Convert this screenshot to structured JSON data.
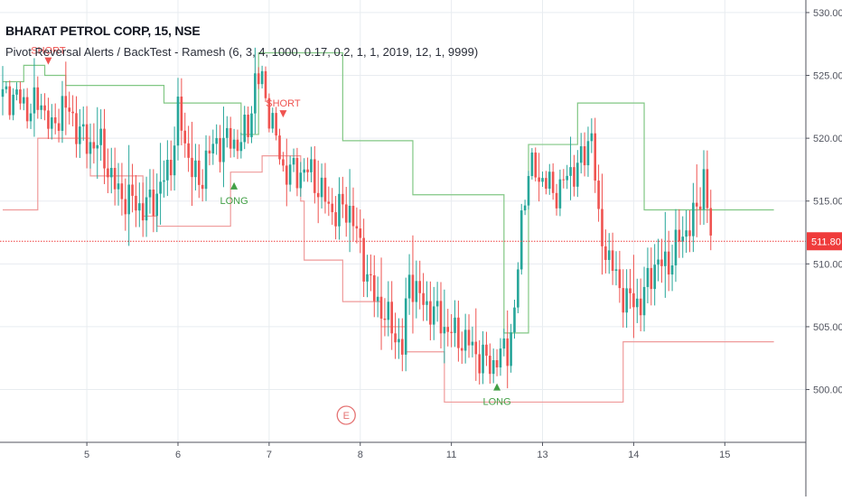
{
  "header": {
    "title": "BHARAT PETROL CORP, 15, NSE",
    "study": "Pivot Reversal Alerts / BackTest - Ramesh (6, 3, 4, 1000, 0.17, 0.2, 1, 1, 2019, 12, 1, 9999)"
  },
  "colors": {
    "up": "#26a69a",
    "down": "#ef5350",
    "upper_line": "#81c784",
    "lower_line": "#ef9a9a",
    "price_line": "#ef3b3b",
    "grid": "#e8ecf0",
    "signal_long": "#43a047",
    "signal_short": "#ef5350"
  },
  "chart_data": {
    "type": "candlestick",
    "ylim": [
      495.8,
      531
    ],
    "y_ticks": [
      "530.00",
      "525.00",
      "520.00",
      "515.00",
      "510.00",
      "505.00",
      "500.00"
    ],
    "x_ticks": [
      {
        "label": "5",
        "bar": 24
      },
      {
        "label": "6",
        "bar": 50
      },
      {
        "label": "7",
        "bar": 76
      },
      {
        "label": "8",
        "bar": 102
      },
      {
        "label": "11",
        "bar": 128
      },
      {
        "label": "13",
        "bar": 154
      },
      {
        "label": "14",
        "bar": 180
      },
      {
        "label": "15",
        "bar": 206
      }
    ],
    "bar_count": 221,
    "current_price": {
      "value": 511.8,
      "label": "511.80"
    },
    "candles_anchors": [
      [
        0,
        523.2
      ],
      [
        7,
        522.6
      ],
      [
        11,
        523.2
      ],
      [
        14,
        520.0
      ],
      [
        17,
        522.5
      ],
      [
        20,
        522.0
      ],
      [
        24,
        519.5
      ],
      [
        28,
        519.0
      ],
      [
        32,
        516.5
      ],
      [
        36,
        515.0
      ],
      [
        40,
        514.0
      ],
      [
        44,
        516.0
      ],
      [
        48,
        518.0
      ],
      [
        50,
        521.5
      ],
      [
        53,
        518.5
      ],
      [
        56,
        516.5
      ],
      [
        58,
        518.8
      ],
      [
        60,
        519.0
      ],
      [
        64,
        519.5
      ],
      [
        67,
        520.0
      ],
      [
        70,
        521.0
      ],
      [
        72,
        524.5
      ],
      [
        74,
        524.0
      ],
      [
        76,
        522.0
      ],
      [
        80,
        518.0
      ],
      [
        84,
        517.0
      ],
      [
        88,
        517.0
      ],
      [
        91,
        516.0
      ],
      [
        95,
        514.0
      ],
      [
        99,
        514.0
      ],
      [
        102,
        511.5
      ],
      [
        106,
        507.5
      ],
      [
        110,
        505.0
      ],
      [
        114,
        503.5
      ],
      [
        116,
        509.5
      ],
      [
        120,
        506.5
      ],
      [
        125,
        505.5
      ],
      [
        128,
        505.0
      ],
      [
        132,
        503.5
      ],
      [
        136,
        502.5
      ],
      [
        140,
        502.5
      ],
      [
        144,
        503.0
      ],
      [
        146,
        505.5
      ],
      [
        148,
        513.5
      ],
      [
        150,
        518.0
      ],
      [
        152,
        517.5
      ],
      [
        155,
        516.5
      ],
      [
        157,
        515.0
      ],
      [
        160,
        516.5
      ],
      [
        163,
        518.0
      ],
      [
        166,
        518.5
      ],
      [
        168,
        520.5
      ],
      [
        170,
        512.5
      ],
      [
        174,
        510.0
      ],
      [
        178,
        507.0
      ],
      [
        182,
        506.5
      ],
      [
        186,
        510.5
      ],
      [
        190,
        510.0
      ],
      [
        194,
        512.0
      ],
      [
        198,
        514.5
      ],
      [
        200,
        517.5
      ],
      [
        202,
        511.8
      ]
    ],
    "upper_line_steps": [
      [
        0,
        524.5
      ],
      [
        6,
        525.8
      ],
      [
        12,
        525.0
      ],
      [
        18,
        524.2
      ],
      [
        46,
        522.8
      ],
      [
        60,
        522.8
      ],
      [
        68,
        520.3
      ],
      [
        73,
        526.8
      ],
      [
        84,
        526.8
      ],
      [
        97,
        519.8
      ],
      [
        116,
        519.8
      ],
      [
        117,
        515.5
      ],
      [
        140,
        515.5
      ],
      [
        143,
        504.5
      ],
      [
        148,
        504.5
      ],
      [
        150,
        519.5
      ],
      [
        160,
        519.5
      ],
      [
        164,
        522.8
      ],
      [
        175,
        522.8
      ],
      [
        183,
        514.3
      ],
      [
        197,
        514.3
      ]
    ],
    "lower_line_steps": [
      [
        0,
        514.3
      ],
      [
        9,
        514.3
      ],
      [
        10,
        520.0
      ],
      [
        22,
        520.0
      ],
      [
        25,
        517.0
      ],
      [
        32,
        517.0
      ],
      [
        40,
        513.8
      ],
      [
        44,
        513.0
      ],
      [
        62,
        513.0
      ],
      [
        65,
        517.3
      ],
      [
        74,
        518.6
      ],
      [
        84,
        518.6
      ],
      [
        85,
        515.0
      ],
      [
        86,
        510.3
      ],
      [
        96,
        510.3
      ],
      [
        97,
        507.0
      ],
      [
        108,
        505.0
      ],
      [
        114,
        505.0
      ],
      [
        115,
        503.0
      ],
      [
        124,
        503.0
      ],
      [
        126,
        499.0
      ],
      [
        160,
        499.0
      ],
      [
        175,
        499.0
      ],
      [
        177,
        503.8
      ],
      [
        197,
        503.8
      ]
    ],
    "signals": [
      {
        "type": "short",
        "bar": 13,
        "label": "SHORT",
        "price": 527.0
      },
      {
        "type": "short",
        "bar": 80,
        "label": "SHORT",
        "price": 522.8
      },
      {
        "type": "long",
        "bar": 66,
        "label": "LONG",
        "price": 516.5
      },
      {
        "type": "long",
        "bar": 141,
        "label": "LONG",
        "price": 500.5
      }
    ],
    "event_marker": {
      "label": "E",
      "bar": 98
    }
  }
}
